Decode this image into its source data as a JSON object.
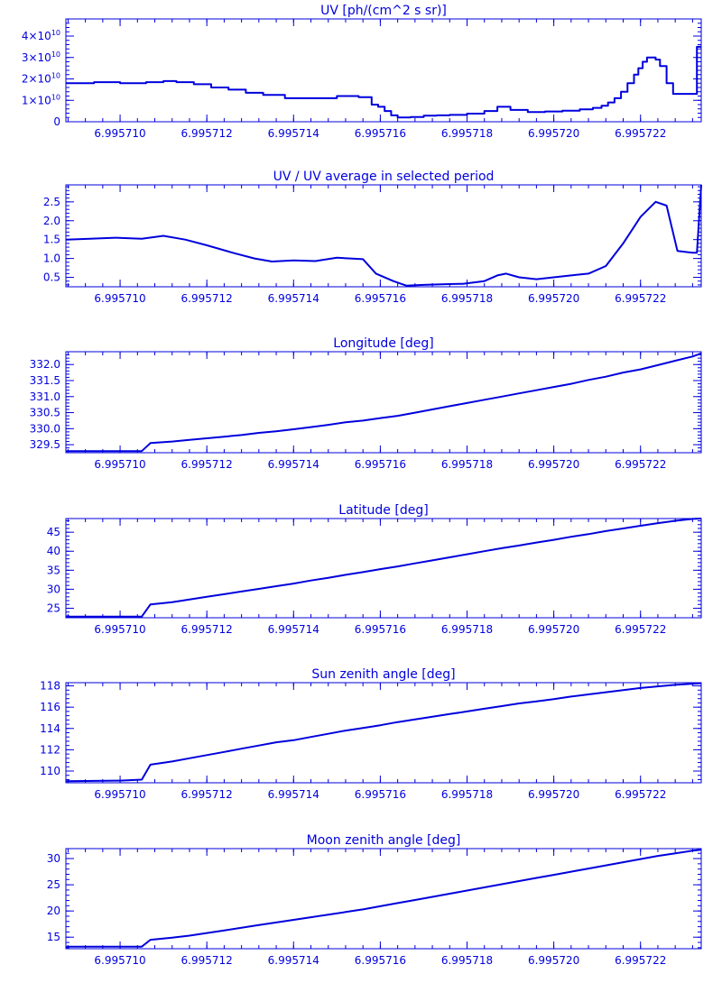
{
  "colors": {
    "ink": "#0000dd",
    "background": "#ffffff"
  },
  "shared_x": {
    "range": [
      6.99570875,
      6.9957234
    ],
    "tick_values": [
      6.99571,
      6.995712,
      6.995714,
      6.995716,
      6.995718,
      6.99572,
      6.995722
    ],
    "tick_labels": [
      "6.995710",
      "6.995712",
      "6.995714",
      "6.995716",
      "6.995718",
      "6.995720",
      "6.995722"
    ]
  },
  "chart_data": [
    {
      "type": "line",
      "title": "UV [ph/(cm^2 s sr)]",
      "step": true,
      "ylim": [
        0,
        48000000000.0
      ],
      "y_ticks": [
        {
          "value": 0,
          "mant": "0",
          "exp": ""
        },
        {
          "value": 10000000000.0,
          "mant": "1×10",
          "exp": "10"
        },
        {
          "value": 20000000000.0,
          "mant": "2×10",
          "exp": "10"
        },
        {
          "value": 30000000000.0,
          "mant": "3×10",
          "exp": "10"
        },
        {
          "value": 40000000000.0,
          "mant": "4×10",
          "exp": "10"
        }
      ],
      "x": [
        6.99570875,
        6.9957094,
        6.99571,
        6.9957106,
        6.995711,
        6.9957113,
        6.9957117,
        6.9957121,
        6.9957125,
        6.9957129,
        6.9957133,
        6.9957138,
        6.9957143,
        6.995715,
        6.9957155,
        6.9957158,
        6.99571595,
        6.9957161,
        6.99571625,
        6.9957164,
        6.99571655,
        6.9957167,
        6.995717,
        6.9957173,
        6.9957176,
        6.995718,
        6.9957184,
        6.9957187,
        6.995719,
        6.9957194,
        6.9957198,
        6.9957202,
        6.9957206,
        6.9957209,
        6.9957211,
        6.99572125,
        6.9957214,
        6.99572155,
        6.9957217,
        6.99572185,
        6.99572195,
        6.99572205,
        6.99572215,
        6.9957222,
        6.99572235,
        6.99572245,
        6.9957226,
        6.99572275,
        6.99572325,
        6.9957233,
        6.9957234
      ],
      "values": [
        18000000000.0,
        18500000000.0,
        18000000000.0,
        18500000000.0,
        19000000000.0,
        18500000000.0,
        17500000000.0,
        16000000000.0,
        15000000000.0,
        13500000000.0,
        12500000000.0,
        11000000000.0,
        11000000000.0,
        12000000000.0,
        11500000000.0,
        8000000000.0,
        7000000000.0,
        5000000000.0,
        3000000000.0,
        2000000000.0,
        2000000000.0,
        2200000000.0,
        2800000000.0,
        3000000000.0,
        3200000000.0,
        3800000000.0,
        5000000000.0,
        7000000000.0,
        5500000000.0,
        4500000000.0,
        4800000000.0,
        5200000000.0,
        5800000000.0,
        6500000000.0,
        7500000000.0,
        9000000000.0,
        11000000000.0,
        14000000000.0,
        18000000000.0,
        22000000000.0,
        25000000000.0,
        28000000000.0,
        30000000000.0,
        30000000000.0,
        29000000000.0,
        26000000000.0,
        18000000000.0,
        13000000000.0,
        13000000000.0,
        35000000000.0,
        35000000000.0
      ]
    },
    {
      "type": "line",
      "title": "UV / UV average in selected period",
      "ylim": [
        0.25,
        2.95
      ],
      "y_ticks": [
        {
          "value": 0.5,
          "label": "0.5"
        },
        {
          "value": 1.0,
          "label": "1.0"
        },
        {
          "value": 1.5,
          "label": "1.5"
        },
        {
          "value": 2.0,
          "label": "2.0"
        },
        {
          "value": 2.5,
          "label": "2.5"
        }
      ],
      "x": [
        6.99570875,
        6.9957093,
        6.9957099,
        6.9957105,
        6.995711,
        6.9957115,
        6.995712,
        6.9957126,
        6.9957131,
        6.9957135,
        6.995714,
        6.9957145,
        6.995715,
        6.9957156,
        6.9957159,
        6.9957163,
        6.9957166,
        6.995717,
        6.9957175,
        6.9957179,
        6.9957184,
        6.9957187,
        6.9957189,
        6.9957192,
        6.9957196,
        6.99572,
        6.9957204,
        6.9957208,
        6.9957212,
        6.9957216,
        6.995722,
        6.99572235,
        6.9957226,
        6.99572285,
        6.9957232,
        6.9957233,
        6.9957234
      ],
      "values": [
        1.5,
        1.52,
        1.55,
        1.52,
        1.6,
        1.5,
        1.35,
        1.15,
        1.0,
        0.92,
        0.95,
        0.93,
        1.02,
        0.98,
        0.6,
        0.4,
        0.28,
        0.3,
        0.32,
        0.33,
        0.4,
        0.55,
        0.6,
        0.5,
        0.45,
        0.5,
        0.55,
        0.6,
        0.8,
        1.4,
        2.1,
        2.5,
        2.4,
        1.2,
        1.15,
        1.15,
        2.95
      ]
    },
    {
      "type": "line",
      "title": "Longitude [deg]",
      "ylim": [
        329.25,
        332.4
      ],
      "y_ticks": [
        {
          "value": 329.5,
          "label": "329.5"
        },
        {
          "value": 330.0,
          "label": "330.0"
        },
        {
          "value": 330.5,
          "label": "330.5"
        },
        {
          "value": 331.0,
          "label": "331.0"
        },
        {
          "value": 331.5,
          "label": "331.5"
        },
        {
          "value": 332.0,
          "label": "332.0"
        }
      ],
      "x": [
        6.99570875,
        6.9957105,
        6.9957107,
        6.9957112,
        6.9957116,
        6.995712,
        6.9957124,
        6.9957128,
        6.9957132,
        6.9957136,
        6.995714,
        6.9957144,
        6.9957148,
        6.9957152,
        6.9957156,
        6.995716,
        6.9957164,
        6.9957168,
        6.9957172,
        6.9957176,
        6.995718,
        6.9957184,
        6.9957188,
        6.9957192,
        6.9957196,
        6.99572,
        6.9957204,
        6.9957208,
        6.9957212,
        6.9957216,
        6.995722,
        6.9957224,
        6.9957228,
        6.9957232,
        6.9957234
      ],
      "values": [
        329.3,
        329.3,
        329.55,
        329.6,
        329.65,
        329.7,
        329.75,
        329.8,
        329.87,
        329.92,
        329.98,
        330.05,
        330.12,
        330.2,
        330.25,
        330.33,
        330.4,
        330.5,
        330.6,
        330.7,
        330.8,
        330.9,
        331.0,
        331.1,
        331.2,
        331.3,
        331.4,
        331.52,
        331.62,
        331.75,
        331.85,
        331.98,
        332.12,
        332.25,
        332.35
      ]
    },
    {
      "type": "line",
      "title": "Latitude [deg]",
      "ylim": [
        22.5,
        48.6
      ],
      "y_ticks": [
        {
          "value": 25,
          "label": "25"
        },
        {
          "value": 30,
          "label": "30"
        },
        {
          "value": 35,
          "label": "35"
        },
        {
          "value": 40,
          "label": "40"
        },
        {
          "value": 45,
          "label": "45"
        }
      ],
      "x": [
        6.99570875,
        6.9957105,
        6.9957107,
        6.9957112,
        6.9957116,
        6.995712,
        6.9957124,
        6.9957128,
        6.9957132,
        6.9957136,
        6.995714,
        6.9957144,
        6.9957148,
        6.9957152,
        6.9957156,
        6.995716,
        6.9957164,
        6.9957168,
        6.9957172,
        6.9957176,
        6.995718,
        6.9957184,
        6.9957188,
        6.9957192,
        6.9957196,
        6.99572,
        6.9957204,
        6.9957208,
        6.9957212,
        6.9957216,
        6.995722,
        6.9957224,
        6.9957228,
        6.9957232,
        6.9957234
      ],
      "values": [
        22.8,
        22.8,
        26.0,
        26.6,
        27.3,
        28.0,
        28.7,
        29.4,
        30.1,
        30.8,
        31.5,
        32.3,
        33.0,
        33.8,
        34.5,
        35.3,
        36.0,
        36.8,
        37.6,
        38.4,
        39.2,
        40.0,
        40.8,
        41.5,
        42.3,
        43.0,
        43.8,
        44.5,
        45.3,
        46.0,
        46.7,
        47.4,
        48.0,
        48.5,
        48.6
      ]
    },
    {
      "type": "line",
      "title": "Sun zenith angle [deg]",
      "ylim": [
        108.9,
        118.3
      ],
      "y_ticks": [
        {
          "value": 110,
          "label": "110"
        },
        {
          "value": 112,
          "label": "112"
        },
        {
          "value": 114,
          "label": "114"
        },
        {
          "value": 116,
          "label": "116"
        },
        {
          "value": 118,
          "label": "118"
        }
      ],
      "x": [
        6.99570875,
        6.99571,
        6.9957105,
        6.9957107,
        6.9957112,
        6.9957116,
        6.995712,
        6.9957124,
        6.9957128,
        6.9957132,
        6.9957136,
        6.995714,
        6.9957144,
        6.9957148,
        6.9957152,
        6.9957156,
        6.995716,
        6.9957164,
        6.9957168,
        6.9957172,
        6.9957176,
        6.995718,
        6.9957184,
        6.9957188,
        6.9957192,
        6.9957196,
        6.99572,
        6.9957204,
        6.9957208,
        6.9957212,
        6.9957216,
        6.995722,
        6.9957224,
        6.9957228,
        6.9957232,
        6.9957234
      ],
      "values": [
        109.05,
        109.1,
        109.2,
        110.6,
        110.9,
        111.2,
        111.5,
        111.8,
        112.1,
        112.4,
        112.7,
        112.9,
        113.2,
        113.5,
        113.8,
        114.05,
        114.3,
        114.6,
        114.85,
        115.1,
        115.35,
        115.6,
        115.85,
        116.1,
        116.35,
        116.55,
        116.75,
        117.0,
        117.2,
        117.4,
        117.6,
        117.8,
        117.95,
        118.1,
        118.2,
        118.25
      ]
    },
    {
      "type": "line",
      "title": "Moon zenith angle [deg]",
      "ylim": [
        12.8,
        31.9
      ],
      "y_ticks": [
        {
          "value": 15,
          "label": "15"
        },
        {
          "value": 20,
          "label": "20"
        },
        {
          "value": 25,
          "label": "25"
        },
        {
          "value": 30,
          "label": "30"
        }
      ],
      "x": [
        6.99570875,
        6.9957105,
        6.9957107,
        6.9957112,
        6.9957116,
        6.995712,
        6.9957124,
        6.9957128,
        6.9957132,
        6.9957136,
        6.995714,
        6.9957144,
        6.9957148,
        6.9957152,
        6.9957156,
        6.995716,
        6.9957164,
        6.9957168,
        6.9957172,
        6.9957176,
        6.995718,
        6.9957184,
        6.9957188,
        6.9957192,
        6.9957196,
        6.99572,
        6.9957204,
        6.9957208,
        6.9957212,
        6.9957216,
        6.995722,
        6.9957224,
        6.9957228,
        6.9957232,
        6.9957234
      ],
      "values": [
        13.2,
        13.2,
        14.5,
        14.9,
        15.3,
        15.8,
        16.3,
        16.8,
        17.3,
        17.8,
        18.3,
        18.8,
        19.3,
        19.8,
        20.3,
        20.9,
        21.5,
        22.1,
        22.7,
        23.3,
        23.9,
        24.5,
        25.1,
        25.7,
        26.3,
        26.9,
        27.5,
        28.1,
        28.7,
        29.3,
        29.9,
        30.5,
        31.0,
        31.5,
        31.7
      ]
    }
  ]
}
